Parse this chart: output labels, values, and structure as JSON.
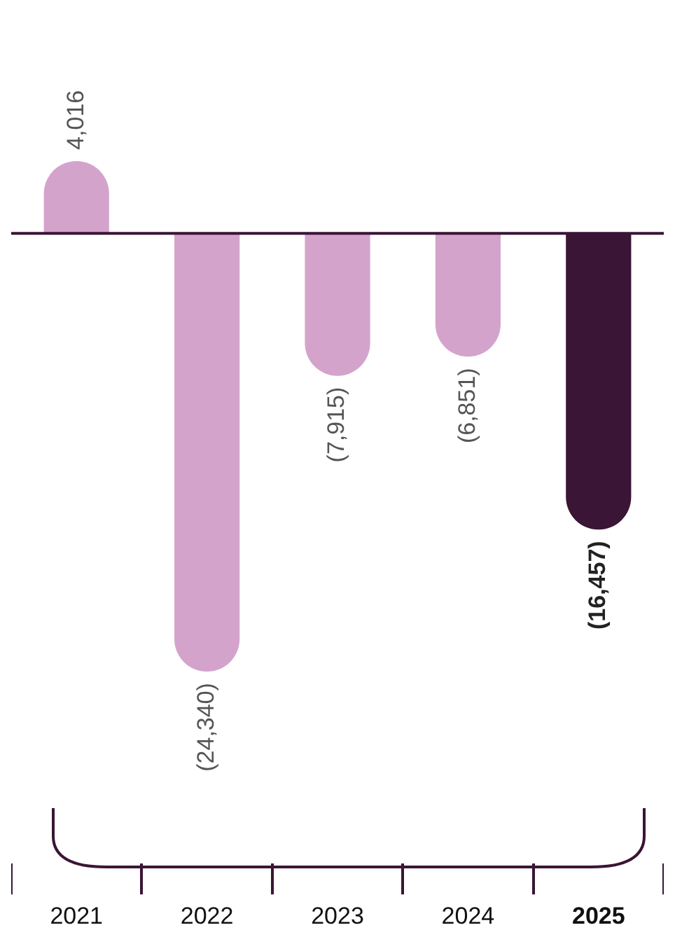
{
  "chart_data": {
    "type": "bar",
    "categories": [
      "2021",
      "2022",
      "2023",
      "2024",
      "2025"
    ],
    "values": [
      4016,
      -24340,
      -7915,
      -6851,
      -16457
    ],
    "colors": [
      "#d4a3cc",
      "#d4a3cc",
      "#d4a3cc",
      "#d4a3cc",
      "#3a1535"
    ],
    "value_labels": [
      "4,016",
      "(24,340)",
      "(7,915)",
      "(6,851)",
      "(16,457)"
    ],
    "grid": false,
    "legend": false
  }
}
